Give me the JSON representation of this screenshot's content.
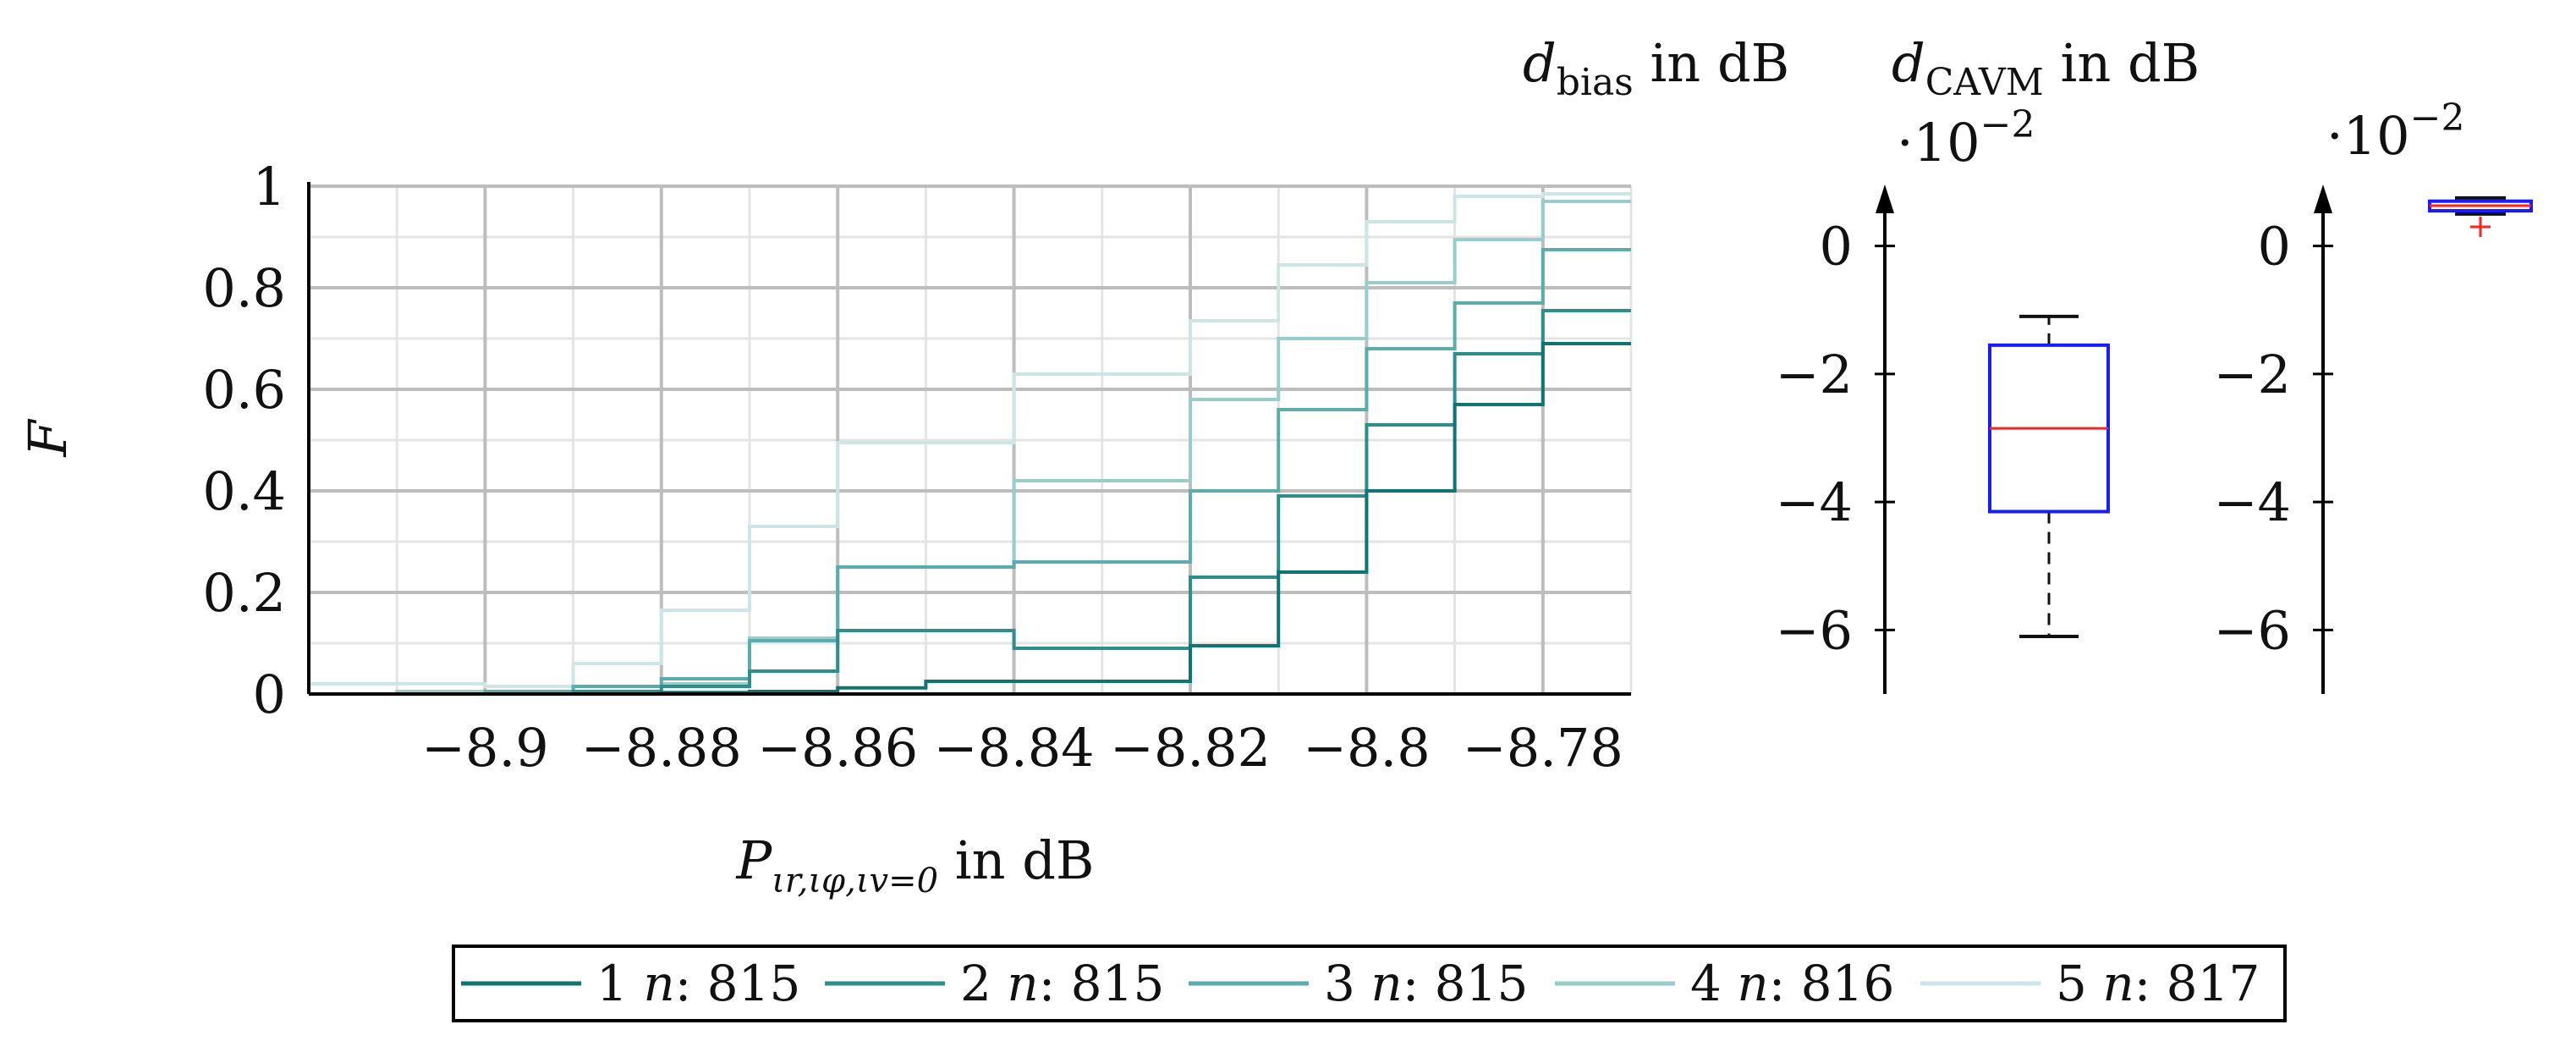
{
  "chart_data": [
    {
      "type": "line",
      "step": "pre",
      "ylabel": "F",
      "xlabel_main": "P",
      "xlabel_sub": "ιr,ιφ,ιv=0",
      "xlabel_unit": " in dB",
      "xlim": [
        -8.92,
        -8.77
      ],
      "ylim": [
        0,
        1
      ],
      "xticks": [
        -8.9,
        -8.88,
        -8.86,
        -8.84,
        -8.82,
        -8.8,
        -8.78
      ],
      "xtick_labels": [
        "−8.9",
        "−8.88",
        "−8.86",
        "−8.84",
        "−8.82",
        "−8.8",
        "−8.78"
      ],
      "yticks": [
        0,
        0.2,
        0.4,
        0.6,
        0.8,
        1
      ],
      "ytick_labels": [
        "0",
        "0.2",
        "0.4",
        "0.6",
        "0.8",
        "1"
      ],
      "grid": true,
      "x_edges": [
        -8.92,
        -8.91,
        -8.9,
        -8.89,
        -8.88,
        -8.87,
        -8.86,
        -8.85,
        -8.84,
        -8.83,
        -8.82,
        -8.81,
        -8.8,
        -8.79,
        -8.78,
        -8.77
      ],
      "series": [
        {
          "name": "1 n: 815",
          "color": "#0e7572",
          "values": [
            0,
            0,
            0,
            0,
            0.003,
            0.005,
            0.012,
            0.025,
            0.025,
            0.025,
            0.095,
            0.24,
            0.4,
            0.57,
            0.69
          ]
        },
        {
          "name": "2 n: 815",
          "color": "#2c8f8a",
          "values": [
            0,
            0,
            0,
            0.005,
            0.015,
            0.045,
            0.125,
            0.125,
            0.09,
            0.09,
            0.23,
            0.39,
            0.53,
            0.67,
            0.755
          ]
        },
        {
          "name": "3 n: 815",
          "color": "#5aadab",
          "values": [
            0,
            0,
            0.005,
            0.015,
            0.03,
            0.105,
            0.25,
            0.25,
            0.26,
            0.26,
            0.4,
            0.56,
            0.68,
            0.77,
            0.875
          ]
        },
        {
          "name": "4 n: 816",
          "color": "#98cdcc",
          "values": [
            0,
            0.005,
            0.005,
            0.015,
            0.02,
            0.11,
            0.25,
            0.25,
            0.42,
            0.42,
            0.58,
            0.7,
            0.81,
            0.895,
            0.97
          ]
        },
        {
          "name": "5 n: 817",
          "color": "#cce6e6",
          "values": [
            0.02,
            0.02,
            0.015,
            0.06,
            0.165,
            0.33,
            0.495,
            0.495,
            0.63,
            0.63,
            0.735,
            0.845,
            0.93,
            0.98,
            0.985
          ]
        }
      ]
    },
    {
      "type": "box",
      "title_main": "d",
      "title_sub": "bias",
      "title_unit": " in dB",
      "scale_label": "·10",
      "scale_exp": "−2",
      "ylim": [
        -7,
        1
      ],
      "yticks": [
        0,
        -2,
        -4,
        -6
      ],
      "ytick_labels": [
        "0",
        "−2",
        "−4",
        "−6"
      ],
      "box": {
        "whisker_low": -6.1,
        "q1": -4.15,
        "median": -2.85,
        "q3": -1.55,
        "whisker_high": -1.1,
        "outliers": []
      },
      "colors": {
        "box": "#1a1aff",
        "median": "#ff2020",
        "whisker": "#111111",
        "outlier": "#ff2020"
      }
    },
    {
      "type": "box",
      "title_main": "d",
      "title_sub": "CAVM",
      "title_unit": " in dB",
      "scale_label": "·10",
      "scale_exp": "−2",
      "ylim": [
        -7,
        1
      ],
      "yticks": [
        0,
        -2,
        -4,
        -6
      ],
      "ytick_labels": [
        "0",
        "−2",
        "−4",
        "−6"
      ],
      "box": {
        "whisker_low": 0.5,
        "q1": 0.55,
        "median": 0.63,
        "q3": 0.7,
        "whisker_high": 0.75,
        "outliers": [
          0.3
        ]
      },
      "colors": {
        "box": "#1a1aff",
        "median": "#ff2020",
        "whisker": "#111111",
        "outlier": "#ff2020"
      }
    }
  ]
}
